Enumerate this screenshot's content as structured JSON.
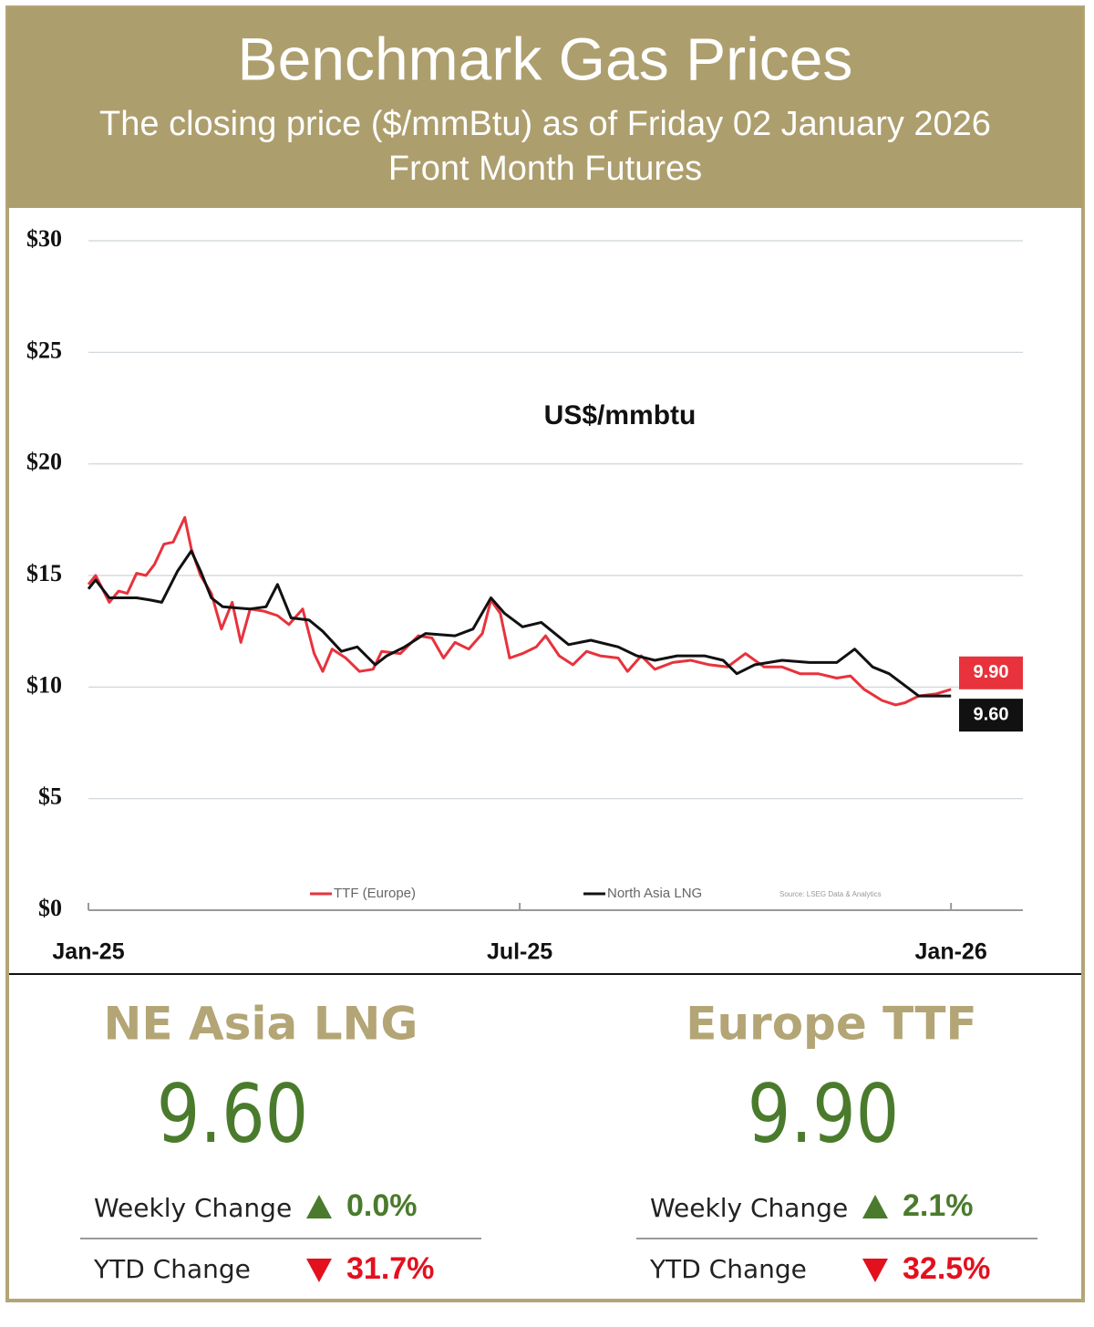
{
  "header": {
    "title": "Benchmark Gas Prices",
    "subtitle": "The closing price ($/mmBtu) as of Friday 02 January 2026",
    "subtitle2": "Front Month  Futures"
  },
  "chart_data": {
    "type": "line",
    "annotation": "US$/mmbtu",
    "source": "Source: LSEG Data & Analytics",
    "xlim": [
      0,
      13
    ],
    "xticks": [
      {
        "value": 0,
        "label": "Jan-25"
      },
      {
        "value": 6,
        "label": "Jul-25"
      },
      {
        "value": 12,
        "label": "Jan-26"
      }
    ],
    "ylim": [
      0,
      30
    ],
    "yticks": [
      {
        "value": 0,
        "label": "$0"
      },
      {
        "value": 5,
        "label": "$5"
      },
      {
        "value": 10,
        "label": "$10"
      },
      {
        "value": 15,
        "label": "$15"
      },
      {
        "value": 20,
        "label": "$20"
      },
      {
        "value": 25,
        "label": "$25"
      },
      {
        "value": 30,
        "label": "$30"
      }
    ],
    "grid": true,
    "legend": "bottom",
    "series": [
      {
        "name": "TTF (Europe)",
        "color": "#e8323c",
        "x": [
          0,
          0.1,
          0.29,
          0.42,
          0.54,
          0.67,
          0.8,
          0.92,
          1.05,
          1.18,
          1.34,
          1.43,
          1.56,
          1.71,
          1.85,
          2.0,
          2.12,
          2.25,
          2.44,
          2.63,
          2.79,
          2.98,
          3.14,
          3.26,
          3.39,
          3.58,
          3.77,
          3.96,
          4.08,
          4.34,
          4.59,
          4.78,
          4.94,
          5.1,
          5.29,
          5.48,
          5.6,
          5.73,
          5.86,
          6.04,
          6.23,
          6.36,
          6.55,
          6.74,
          6.93,
          7.12,
          7.37,
          7.5,
          7.69,
          7.88,
          8.13,
          8.38,
          8.64,
          8.89,
          9.14,
          9.4,
          9.65,
          9.9,
          10.15,
          10.41,
          10.6,
          10.79,
          11.04,
          11.23,
          11.36,
          11.55,
          11.8,
          12.0
        ],
        "values": [
          14.6,
          15.0,
          13.8,
          14.3,
          14.2,
          15.1,
          15.0,
          15.5,
          16.4,
          16.5,
          17.6,
          16.2,
          15.0,
          14.2,
          12.6,
          13.8,
          12.0,
          13.5,
          13.4,
          13.2,
          12.8,
          13.5,
          11.5,
          10.7,
          11.7,
          11.3,
          10.7,
          10.8,
          11.6,
          11.5,
          12.3,
          12.2,
          11.3,
          12.0,
          11.7,
          12.4,
          13.9,
          13.3,
          11.3,
          11.5,
          11.8,
          12.3,
          11.4,
          11.0,
          11.6,
          11.4,
          11.3,
          10.7,
          11.4,
          10.8,
          11.1,
          11.2,
          11.0,
          10.9,
          11.5,
          10.9,
          10.9,
          10.6,
          10.6,
          10.4,
          10.5,
          9.9,
          9.4,
          9.2,
          9.3,
          9.6,
          9.7,
          9.9
        ],
        "value_labels": [
          null,
          null,
          null,
          null,
          null,
          null,
          null,
          null,
          null,
          null,
          null,
          null,
          null,
          null,
          null,
          null,
          null,
          null,
          null,
          null,
          null,
          null,
          null,
          null,
          null,
          null,
          null,
          null,
          null,
          null,
          null,
          null,
          null,
          null,
          null,
          null,
          null,
          null,
          null,
          null,
          null,
          null,
          null,
          null,
          null,
          null,
          null,
          null,
          null,
          null,
          null,
          null,
          null,
          null,
          null,
          null,
          null,
          null,
          null,
          null,
          null,
          null,
          null,
          null,
          null,
          null,
          null,
          "9.90"
        ]
      },
      {
        "name": "North Asia LNG",
        "color": "#111111",
        "x": [
          0,
          0.1,
          0.29,
          0.67,
          0.86,
          1.02,
          1.24,
          1.43,
          1.56,
          1.71,
          1.87,
          2.25,
          2.47,
          2.63,
          2.82,
          3.07,
          3.26,
          3.52,
          3.74,
          3.99,
          4.15,
          4.4,
          4.69,
          5.1,
          5.35,
          5.6,
          5.79,
          6.04,
          6.3,
          6.68,
          6.99,
          7.37,
          7.63,
          7.88,
          8.19,
          8.57,
          8.83,
          9.02,
          9.27,
          9.65,
          10.03,
          10.41,
          10.66,
          10.91,
          11.14,
          11.55,
          11.8,
          12.0
        ],
        "values": [
          14.4,
          14.8,
          14.0,
          14.0,
          13.9,
          13.8,
          15.2,
          16.1,
          15.2,
          14.0,
          13.6,
          13.5,
          13.6,
          14.6,
          13.1,
          13.0,
          12.5,
          11.6,
          11.8,
          11.0,
          11.4,
          11.8,
          12.4,
          12.3,
          12.6,
          14.0,
          13.3,
          12.7,
          12.9,
          11.9,
          12.1,
          11.8,
          11.4,
          11.2,
          11.4,
          11.4,
          11.2,
          10.6,
          11.0,
          11.2,
          11.1,
          11.1,
          11.7,
          10.9,
          10.6,
          9.6,
          9.6,
          9.6
        ],
        "value_labels": [
          null,
          null,
          null,
          null,
          null,
          null,
          null,
          null,
          null,
          null,
          null,
          null,
          null,
          null,
          null,
          null,
          null,
          null,
          null,
          null,
          null,
          null,
          null,
          null,
          null,
          null,
          null,
          null,
          null,
          null,
          null,
          null,
          null,
          null,
          null,
          null,
          null,
          null,
          null,
          null,
          null,
          null,
          null,
          null,
          null,
          null,
          null,
          "9.60"
        ]
      }
    ]
  },
  "panels": [
    {
      "name": "NE Asia LNG",
      "price": "9.60",
      "weekly_label": "Weekly Change",
      "weekly_change": "0.0%",
      "ytd_label": "YTD Change",
      "ytd_change": "31.7%"
    },
    {
      "name": "Europe TTF",
      "price": "9.90",
      "weekly_label": "Weekly Change",
      "weekly_change": "2.1%",
      "ytd_label": "YTD Change",
      "ytd_change": "32.5%"
    }
  ]
}
